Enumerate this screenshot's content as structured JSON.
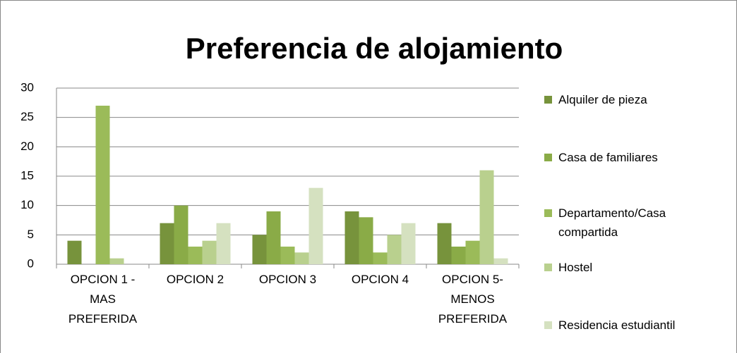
{
  "chart_data": {
    "type": "bar",
    "title": "Preferencia de alojamiento",
    "categories": [
      "OPCION 1 - MAS PREFERIDA",
      "OPCION 2",
      "OPCION 3",
      "OPCION 4",
      "OPCION 5- MENOS PREFERIDA"
    ],
    "series": [
      {
        "name": "Alquiler de pieza",
        "color": "#77933c",
        "values": [
          4,
          7,
          5,
          9,
          7
        ]
      },
      {
        "name": "Casa de familiares",
        "color": "#8aab47",
        "values": [
          0,
          10,
          9,
          8,
          3
        ]
      },
      {
        "name": "Departamento/Casa compartida",
        "color": "#9bbb59",
        "values": [
          27,
          3,
          3,
          2,
          4
        ]
      },
      {
        "name": "Hostel",
        "color": "#b9d08e",
        "values": [
          1,
          4,
          2,
          5,
          16
        ]
      },
      {
        "name": "Residencia estudiantil",
        "color": "#d5e1c0",
        "values": [
          0,
          7,
          13,
          7,
          1
        ]
      }
    ],
    "ylim": [
      0,
      30
    ],
    "yticks": [
      0,
      5,
      10,
      15,
      20,
      25,
      30
    ],
    "grid": true,
    "legend": "right"
  }
}
